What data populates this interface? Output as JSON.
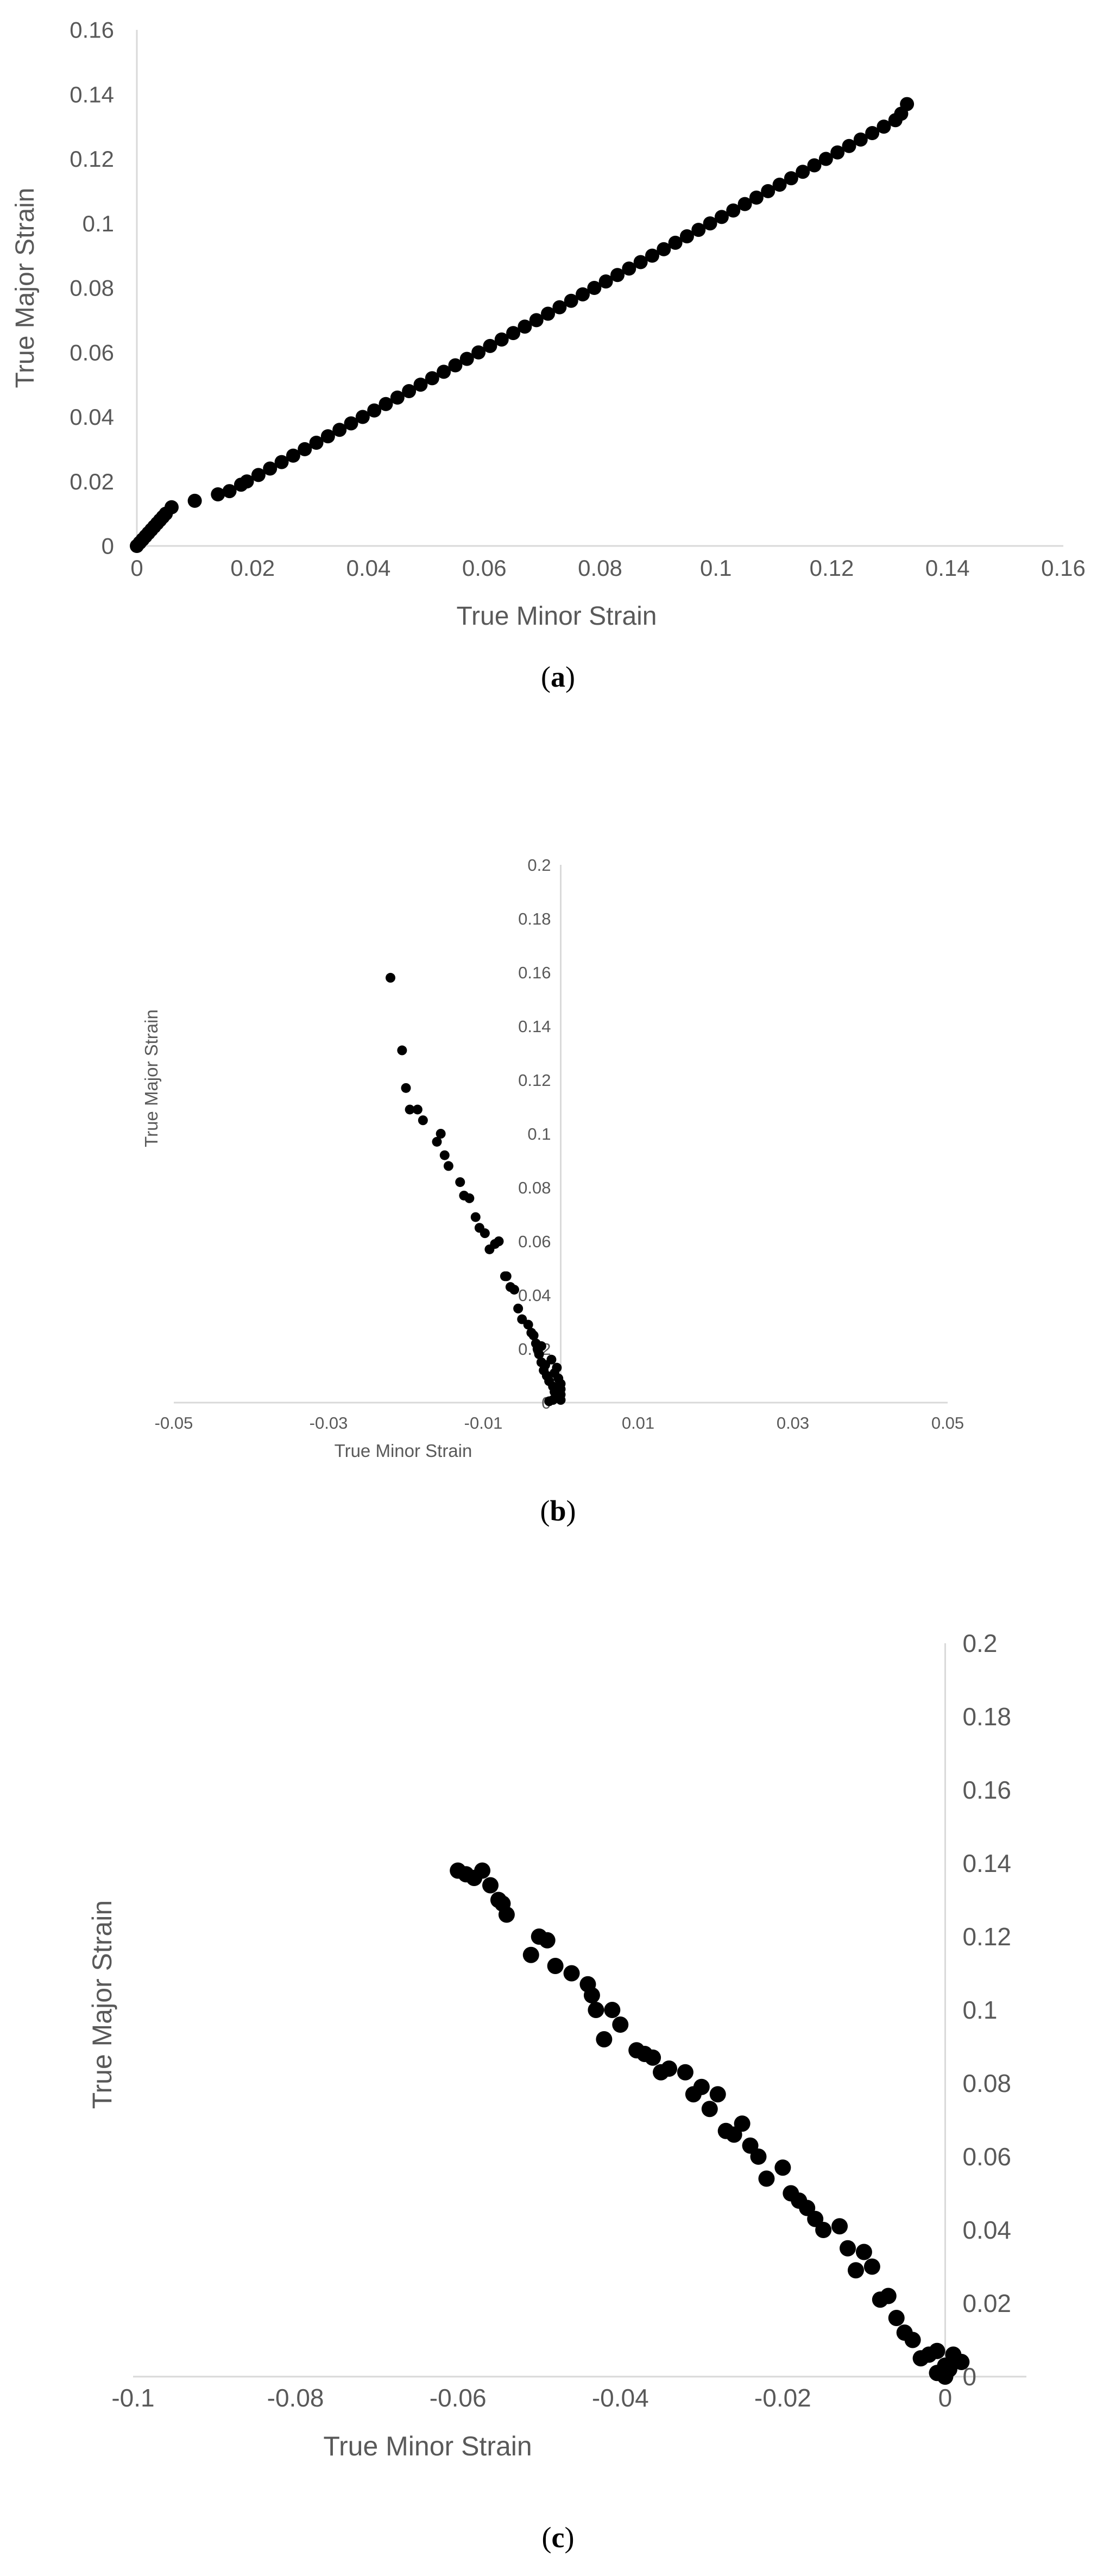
{
  "chart_data": [
    {
      "type": "scatter",
      "panel_label": "a",
      "xlabel": "True Minor Strain",
      "ylabel": "True Major Strain",
      "xlim": [
        0,
        0.16
      ],
      "ylim": [
        0,
        0.16
      ],
      "xticks": [
        "0",
        "0.02",
        "0.04",
        "0.06",
        "0.08",
        "0.1",
        "0.12",
        "0.14",
        "0.16"
      ],
      "yticks": [
        "0",
        "0.02",
        "0.04",
        "0.06",
        "0.08",
        "0.1",
        "0.12",
        "0.14",
        "0.16"
      ],
      "series": [
        {
          "x": [
            0,
            0.0005,
            0.001,
            0.0015,
            0.002,
            0.0025,
            0.003,
            0.0035,
            0.004,
            0.0045,
            0.005,
            0.006,
            0.01,
            0.014,
            0.016,
            0.018,
            0.019,
            0.021,
            0.023,
            0.025,
            0.027,
            0.029,
            0.031,
            0.033,
            0.035,
            0.037,
            0.039,
            0.041,
            0.043,
            0.045,
            0.047,
            0.049,
            0.051,
            0.053,
            0.055,
            0.057,
            0.059,
            0.061,
            0.063,
            0.065,
            0.067,
            0.069,
            0.071,
            0.073,
            0.075,
            0.077,
            0.079,
            0.081,
            0.083,
            0.085,
            0.087,
            0.089,
            0.091,
            0.093,
            0.095,
            0.097,
            0.099,
            0.101,
            0.103,
            0.105,
            0.107,
            0.109,
            0.111,
            0.113,
            0.115,
            0.117,
            0.119,
            0.121,
            0.123,
            0.125,
            0.127,
            0.129,
            0.131,
            0.132,
            0.133
          ],
          "y": [
            0,
            0.001,
            0.002,
            0.003,
            0.004,
            0.005,
            0.006,
            0.007,
            0.008,
            0.009,
            0.01,
            0.012,
            0.014,
            0.016,
            0.017,
            0.019,
            0.02,
            0.022,
            0.024,
            0.026,
            0.028,
            0.03,
            0.032,
            0.034,
            0.036,
            0.038,
            0.04,
            0.042,
            0.044,
            0.046,
            0.048,
            0.05,
            0.052,
            0.054,
            0.056,
            0.058,
            0.06,
            0.062,
            0.064,
            0.066,
            0.068,
            0.07,
            0.072,
            0.074,
            0.076,
            0.078,
            0.08,
            0.082,
            0.084,
            0.086,
            0.088,
            0.09,
            0.092,
            0.094,
            0.096,
            0.098,
            0.1,
            0.102,
            0.104,
            0.106,
            0.108,
            0.11,
            0.112,
            0.114,
            0.116,
            0.118,
            0.12,
            0.122,
            0.124,
            0.126,
            0.128,
            0.13,
            0.132,
            0.134,
            0.137
          ]
        }
      ]
    },
    {
      "type": "scatter",
      "panel_label": "b",
      "xlabel": "True Minor Strain",
      "ylabel": "True Major Strain",
      "xlim": [
        -0.05,
        0.05
      ],
      "ylim": [
        0,
        0.2
      ],
      "xticks": [
        "-0.05",
        "-0.03",
        "-0.01",
        "0.01",
        "0.03",
        "0.05"
      ],
      "yticks": [
        "0",
        "0.02",
        "0.04",
        "0.06",
        "0.08",
        "0.1",
        "0.12",
        "0.14",
        "0.16",
        "0.18",
        "0.2"
      ],
      "series": [
        {
          "x": [
            -0.022,
            -0.0205,
            -0.02,
            -0.0195,
            -0.0185,
            -0.0178,
            -0.016,
            -0.0155,
            -0.015,
            -0.0145,
            -0.013,
            -0.0125,
            -0.0118,
            -0.011,
            -0.0105,
            -0.0098,
            -0.0092,
            -0.0085,
            -0.008,
            -0.0072,
            -0.007,
            -0.0065,
            -0.006,
            -0.0055,
            -0.005,
            -0.0042,
            -0.0038,
            -0.0035,
            -0.0032,
            -0.003,
            -0.0028,
            -0.0025,
            -0.0022,
            -0.0018,
            -0.0015,
            -0.001,
            -0.0008,
            -0.0005,
            0,
            0,
            0,
            -0.0003,
            -0.0008,
            -0.002,
            -0.0025,
            -0.0012,
            -0.0005,
            0,
            -0.001,
            -0.0015
          ],
          "y": [
            0.158,
            0.131,
            0.117,
            0.109,
            0.109,
            0.105,
            0.097,
            0.1,
            0.092,
            0.088,
            0.082,
            0.077,
            0.076,
            0.069,
            0.065,
            0.063,
            0.057,
            0.059,
            0.06,
            0.047,
            0.047,
            0.043,
            0.042,
            0.035,
            0.031,
            0.029,
            0.026,
            0.025,
            0.022,
            0.02,
            0.018,
            0.015,
            0.012,
            0.01,
            0.008,
            0.006,
            0.004,
            0.002,
            0.003,
            0.005,
            0.007,
            0.009,
            0.011,
            0.014,
            0.021,
            0.016,
            0.013,
            0.001,
            0.001,
            0.0005
          ]
        }
      ]
    },
    {
      "type": "scatter",
      "panel_label": "c",
      "xlabel": "True Minor Strain",
      "ylabel": "True Major Strain",
      "xlim": [
        -0.1,
        0.01
      ],
      "ylim": [
        0,
        0.2
      ],
      "xticks": [
        "-0.1",
        "-0.08",
        "-0.06",
        "-0.04",
        "-0.02",
        "0"
      ],
      "yticks": [
        "0",
        "0.02",
        "0.04",
        "0.06",
        "0.08",
        "0.1",
        "0.12",
        "0.14",
        "0.16",
        "0.18",
        "0.2"
      ],
      "series": [
        {
          "x": [
            -0.06,
            -0.059,
            -0.058,
            -0.057,
            -0.056,
            -0.055,
            -0.0545,
            -0.054,
            -0.051,
            -0.05,
            -0.049,
            -0.048,
            -0.046,
            -0.044,
            -0.0435,
            -0.043,
            -0.042,
            -0.041,
            -0.04,
            -0.038,
            -0.037,
            -0.036,
            -0.035,
            -0.034,
            -0.032,
            -0.031,
            -0.03,
            -0.029,
            -0.028,
            -0.027,
            -0.026,
            -0.025,
            -0.024,
            -0.023,
            -0.022,
            -0.02,
            -0.019,
            -0.018,
            -0.017,
            -0.016,
            -0.015,
            -0.013,
            -0.012,
            -0.011,
            -0.01,
            -0.009,
            -0.008,
            -0.007,
            -0.006,
            -0.005,
            -0.004,
            -0.003,
            -0.002,
            -0.001,
            0,
            0.001,
            0.002,
            -0.001,
            0,
            0.0005
          ],
          "y": [
            0.138,
            0.137,
            0.136,
            0.138,
            0.134,
            0.13,
            0.129,
            0.126,
            0.115,
            0.12,
            0.119,
            0.112,
            0.11,
            0.107,
            0.104,
            0.1,
            0.092,
            0.1,
            0.096,
            0.089,
            0.088,
            0.087,
            0.083,
            0.084,
            0.083,
            0.077,
            0.079,
            0.073,
            0.077,
            0.067,
            0.066,
            0.069,
            0.063,
            0.06,
            0.054,
            0.057,
            0.05,
            0.048,
            0.046,
            0.043,
            0.04,
            0.041,
            0.035,
            0.029,
            0.034,
            0.03,
            0.021,
            0.022,
            0.016,
            0.012,
            0.01,
            0.005,
            0.006,
            0.007,
            0.003,
            0.006,
            0.004,
            0.001,
            0,
            0.002
          ]
        }
      ]
    }
  ]
}
